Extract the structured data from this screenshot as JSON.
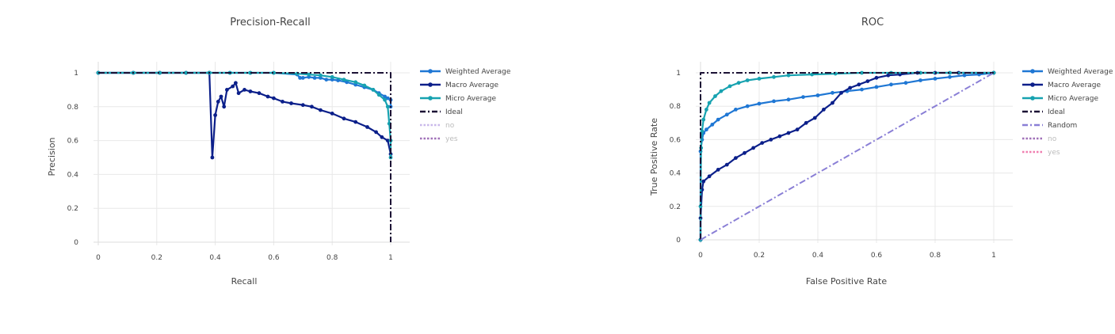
{
  "colors": {
    "weighted": "#1f77d4",
    "macro": "#0b1f8a",
    "micro": "#17a2b0",
    "ideal": "#1c1235",
    "random": "#8a7fd6",
    "no": "#c9b8ea",
    "yes_pr": "#a071b8",
    "yes_roc": "#f07fb0",
    "no_roc": "#a071b8"
  },
  "chart_data": [
    {
      "type": "line",
      "title": "Precision-Recall",
      "xlabel": "Recall",
      "ylabel": "Precision",
      "xlim": [
        0,
        1
      ],
      "ylim": [
        0,
        1
      ],
      "grid": true,
      "legend_position": "right",
      "x_ticks": [
        "0",
        "0.2",
        "0.4",
        "0.6",
        "0.8",
        "1"
      ],
      "y_ticks": [
        "0",
        "0.2",
        "0.4",
        "0.6",
        "0.8",
        "1"
      ],
      "series": [
        {
          "name": "Weighted Average",
          "key": "weighted",
          "style": "line-marker",
          "x": [
            0,
            0.12,
            0.21,
            0.3,
            0.38,
            0.45,
            0.52,
            0.6,
            0.68,
            0.69,
            0.7,
            0.72,
            0.74,
            0.76,
            0.78,
            0.8,
            0.82,
            0.85,
            0.88,
            0.91,
            0.94,
            0.96,
            0.98,
            0.99,
            1.0,
            1.0
          ],
          "y": [
            1,
            1,
            1,
            1,
            1,
            1,
            1,
            1,
            0.99,
            0.97,
            0.97,
            0.975,
            0.97,
            0.97,
            0.96,
            0.96,
            0.955,
            0.945,
            0.93,
            0.915,
            0.9,
            0.88,
            0.86,
            0.85,
            0.84,
            0.8
          ]
        },
        {
          "name": "Macro Average",
          "key": "macro",
          "style": "line-marker",
          "x": [
            0,
            0.12,
            0.21,
            0.3,
            0.38,
            0.39,
            0.4,
            0.41,
            0.42,
            0.43,
            0.44,
            0.46,
            0.47,
            0.48,
            0.5,
            0.52,
            0.55,
            0.58,
            0.6,
            0.63,
            0.66,
            0.7,
            0.73,
            0.76,
            0.8,
            0.84,
            0.88,
            0.92,
            0.95,
            0.97,
            0.99,
            1.0
          ],
          "y": [
            1,
            1,
            1,
            1,
            1,
            0.5,
            0.75,
            0.83,
            0.86,
            0.8,
            0.9,
            0.92,
            0.94,
            0.88,
            0.9,
            0.89,
            0.88,
            0.86,
            0.85,
            0.83,
            0.82,
            0.81,
            0.8,
            0.78,
            0.76,
            0.73,
            0.71,
            0.68,
            0.65,
            0.62,
            0.6,
            0.52
          ]
        },
        {
          "name": "Micro Average",
          "key": "micro",
          "style": "line-marker",
          "x": [
            0,
            0.12,
            0.21,
            0.3,
            0.38,
            0.45,
            0.52,
            0.6,
            0.68,
            0.72,
            0.76,
            0.8,
            0.84,
            0.88,
            0.91,
            0.94,
            0.96,
            0.98,
            0.99,
            0.995,
            1.0,
            1.0
          ],
          "y": [
            1,
            1,
            1,
            1,
            1,
            1,
            1,
            1,
            0.995,
            0.99,
            0.985,
            0.975,
            0.96,
            0.945,
            0.925,
            0.9,
            0.87,
            0.84,
            0.8,
            0.7,
            0.6,
            0.5
          ]
        },
        {
          "name": "Ideal",
          "key": "ideal",
          "style": "dashdot",
          "x": [
            0,
            1,
            1
          ],
          "y": [
            1,
            1,
            0
          ]
        },
        {
          "name": "no",
          "key": "no",
          "style": "dot",
          "hidden": true,
          "x": [],
          "y": []
        },
        {
          "name": "yes",
          "key": "yes_pr",
          "style": "dot",
          "hidden": true,
          "x": [],
          "y": []
        }
      ]
    },
    {
      "type": "line",
      "title": "ROC",
      "xlabel": "False Positive Rate",
      "ylabel": "True Positive Rate",
      "xlim": [
        0,
        1
      ],
      "ylim": [
        0,
        1
      ],
      "grid": true,
      "legend_position": "right",
      "x_ticks": [
        "0",
        "0.2",
        "0.4",
        "0.6",
        "0.8",
        "1"
      ],
      "y_ticks": [
        "0",
        "0.2",
        "0.4",
        "0.6",
        "0.8",
        "1"
      ],
      "series": [
        {
          "name": "Weighted Average",
          "key": "weighted",
          "style": "line-marker",
          "x": [
            0,
            0,
            0.005,
            0.01,
            0.02,
            0.04,
            0.06,
            0.09,
            0.12,
            0.16,
            0.2,
            0.25,
            0.3,
            0.35,
            0.4,
            0.45,
            0.5,
            0.55,
            0.6,
            0.65,
            0.7,
            0.75,
            0.8,
            0.85,
            0.9,
            0.95,
            1.0
          ],
          "y": [
            0,
            0.53,
            0.6,
            0.64,
            0.66,
            0.69,
            0.72,
            0.75,
            0.78,
            0.8,
            0.815,
            0.83,
            0.84,
            0.855,
            0.865,
            0.88,
            0.89,
            0.9,
            0.915,
            0.93,
            0.94,
            0.955,
            0.965,
            0.975,
            0.985,
            0.99,
            1.0
          ]
        },
        {
          "name": "Macro Average",
          "key": "macro",
          "style": "line-marker",
          "x": [
            0,
            0,
            0.005,
            0.01,
            0.03,
            0.06,
            0.09,
            0.12,
            0.15,
            0.18,
            0.21,
            0.24,
            0.27,
            0.3,
            0.33,
            0.36,
            0.39,
            0.42,
            0.45,
            0.48,
            0.51,
            0.54,
            0.57,
            0.6,
            0.64,
            0.68,
            0.74,
            0.8,
            0.88,
            1.0
          ],
          "y": [
            0,
            0.13,
            0.3,
            0.35,
            0.38,
            0.42,
            0.45,
            0.49,
            0.52,
            0.55,
            0.58,
            0.6,
            0.62,
            0.64,
            0.66,
            0.7,
            0.73,
            0.78,
            0.82,
            0.88,
            0.91,
            0.93,
            0.95,
            0.97,
            0.985,
            0.99,
            1.0,
            1.0,
            1.0,
            1.0
          ]
        },
        {
          "name": "Micro Average",
          "key": "micro",
          "style": "line-marker",
          "x": [
            0,
            0,
            0.002,
            0.005,
            0.01,
            0.02,
            0.03,
            0.05,
            0.07,
            0.1,
            0.13,
            0.16,
            0.2,
            0.25,
            0.3,
            0.38,
            0.46,
            0.55,
            0.65,
            0.75,
            0.85,
            1.0
          ],
          "y": [
            0,
            0.2,
            0.55,
            0.65,
            0.72,
            0.78,
            0.82,
            0.86,
            0.89,
            0.92,
            0.94,
            0.955,
            0.965,
            0.975,
            0.985,
            0.99,
            0.995,
            1.0,
            1.0,
            1.0,
            1.0,
            1.0
          ]
        },
        {
          "name": "Ideal",
          "key": "ideal",
          "style": "dashdot",
          "x": [
            0,
            0,
            1
          ],
          "y": [
            0,
            1,
            1
          ]
        },
        {
          "name": "Random",
          "key": "random",
          "style": "dashdot",
          "x": [
            0,
            1
          ],
          "y": [
            0,
            1
          ]
        },
        {
          "name": "no",
          "key": "no_roc",
          "style": "dot",
          "hidden": true,
          "x": [],
          "y": []
        },
        {
          "name": "yes",
          "key": "yes_roc",
          "style": "dot",
          "hidden": true,
          "x": [],
          "y": []
        }
      ]
    }
  ]
}
